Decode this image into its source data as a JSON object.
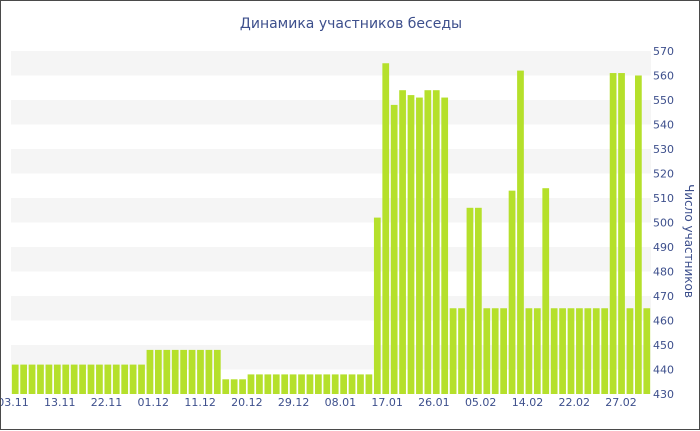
{
  "chart_data": {
    "type": "bar",
    "title": "Динамика участников беседы",
    "xlabel": "",
    "ylabel": "Число участников",
    "y_axis_side": "right",
    "ylim": [
      430,
      570
    ],
    "ytick_step": 10,
    "grid": "horizontal alternating bands",
    "legend": "none",
    "bar_color": "#b5e02b",
    "band_color": "#f5f5f5",
    "x_tick_labels": [
      "03.11",
      "13.11",
      "22.11",
      "01.12",
      "11.12",
      "20.12",
      "29.12",
      "08.01",
      "17.01",
      "26.01",
      "05.02",
      "14.02",
      "22.02",
      "27.02"
    ],
    "values": [
      442,
      442,
      442,
      442,
      442,
      442,
      442,
      442,
      442,
      442,
      442,
      442,
      442,
      442,
      442,
      442,
      448,
      448,
      448,
      448,
      448,
      448,
      448,
      448,
      448,
      436,
      436,
      436,
      438,
      438,
      438,
      438,
      438,
      438,
      438,
      438,
      438,
      438,
      438,
      438,
      438,
      438,
      438,
      502,
      565,
      548,
      554,
      552,
      551,
      554,
      554,
      551,
      465,
      465,
      506,
      506,
      465,
      465,
      465,
      513,
      562,
      465,
      465,
      514,
      465,
      465,
      465,
      465,
      465,
      465,
      465,
      561,
      561,
      465,
      560,
      465
    ]
  }
}
